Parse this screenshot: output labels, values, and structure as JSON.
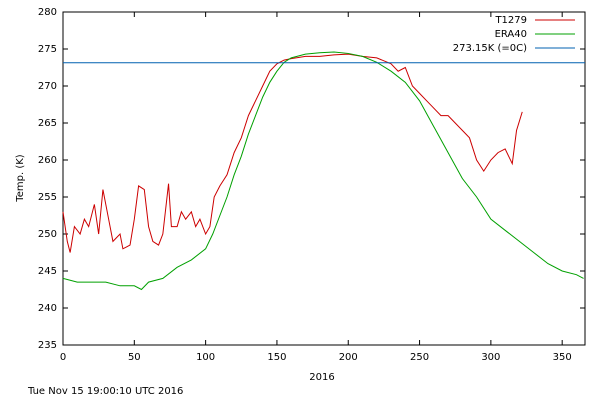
{
  "chart_data": {
    "type": "line",
    "xlabel": "2016",
    "ylabel": "Temp. (K)",
    "footer": "Tue Nov 15 19:00:10 UTC 2016",
    "xlim": [
      0,
      366
    ],
    "ylim": [
      235,
      280
    ],
    "xticks": [
      0,
      50,
      100,
      150,
      200,
      250,
      300,
      350
    ],
    "yticks": [
      235,
      240,
      245,
      250,
      255,
      260,
      265,
      270,
      275,
      280
    ],
    "legend": "upper right",
    "series": [
      {
        "name": "T1279",
        "color": "#cc0000",
        "x": [
          0,
          3,
          5,
          8,
          12,
          15,
          18,
          22,
          25,
          28,
          32,
          35,
          40,
          42,
          47,
          50,
          53,
          57,
          60,
          63,
          67,
          70,
          74,
          76,
          80,
          83,
          86,
          90,
          93,
          96,
          100,
          103,
          106,
          110,
          115,
          120,
          125,
          130,
          135,
          140,
          145,
          150,
          155,
          160,
          170,
          180,
          190,
          200,
          210,
          220,
          230,
          235,
          240,
          245,
          250,
          255,
          260,
          265,
          270,
          275,
          280,
          285,
          290,
          295,
          300,
          305,
          310,
          315,
          318,
          322
        ],
        "values": [
          253,
          249,
          247.5,
          251,
          250,
          252,
          251,
          254,
          250,
          256,
          252,
          249,
          250,
          248,
          248.5,
          252,
          256.5,
          256,
          251,
          249,
          248.5,
          250,
          256.8,
          251,
          251,
          253,
          252,
          253,
          251,
          252,
          250,
          251,
          255,
          256.5,
          258,
          261,
          263,
          266,
          268,
          270,
          272,
          273,
          273.5,
          273.7,
          274,
          274,
          274.2,
          274.3,
          274,
          273.8,
          273,
          272,
          272.5,
          270,
          269,
          268,
          267,
          266,
          266,
          265,
          264,
          263,
          260,
          258.5,
          260,
          261,
          261.5,
          259.5,
          264,
          266.5
        ]
      },
      {
        "name": "ERA40",
        "color": "#00a000",
        "x": [
          0,
          10,
          20,
          30,
          40,
          50,
          55,
          60,
          70,
          80,
          90,
          100,
          105,
          110,
          115,
          120,
          125,
          130,
          135,
          140,
          145,
          150,
          155,
          160,
          170,
          180,
          190,
          200,
          210,
          220,
          230,
          240,
          250,
          260,
          270,
          280,
          290,
          300,
          310,
          320,
          330,
          340,
          350,
          360,
          365
        ],
        "values": [
          244,
          243.5,
          243.5,
          243.5,
          243,
          243,
          242.5,
          243.5,
          244,
          245.5,
          246.5,
          248,
          250,
          252.5,
          255,
          258,
          260.5,
          263.5,
          266,
          268.5,
          270.5,
          272,
          273.2,
          273.8,
          274.3,
          274.5,
          274.6,
          274.4,
          274,
          273.2,
          272,
          270.5,
          268,
          264.5,
          261,
          257.5,
          255,
          252,
          250.5,
          249,
          247.5,
          246,
          245,
          244.5,
          244
        ]
      },
      {
        "name": "273.15K (=0C)",
        "color": "#0060b0",
        "x": [
          0,
          366
        ],
        "values": [
          273.15,
          273.15
        ]
      }
    ]
  }
}
